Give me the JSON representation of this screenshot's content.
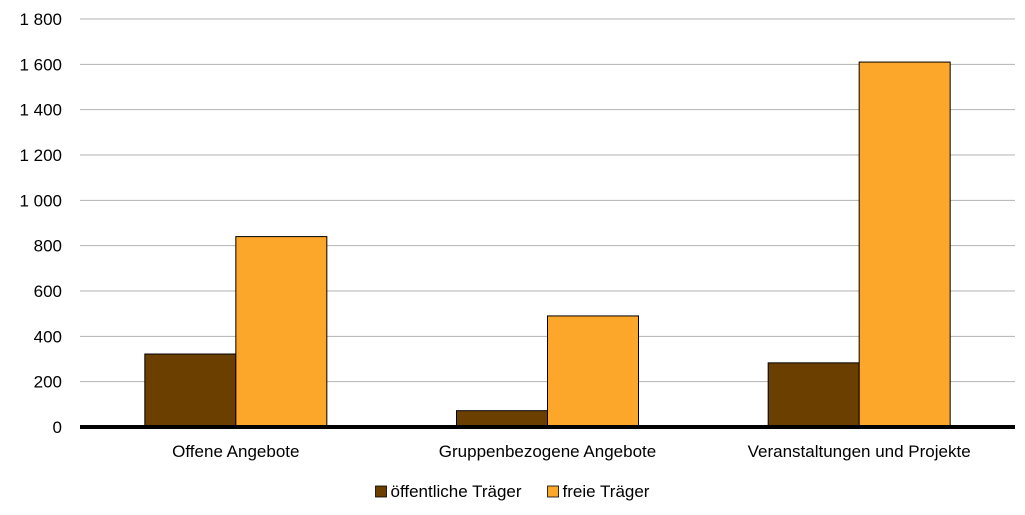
{
  "chart_data": {
    "type": "bar",
    "categories": [
      "Offene Angebote",
      "Gruppenbezogene Angebote",
      "Veranstaltungen und Projekte"
    ],
    "series": [
      {
        "name": "öffentliche Träger",
        "values": [
          322,
          72,
          283
        ],
        "color": "#6b3f00"
      },
      {
        "name": "freie Träger",
        "values": [
          840,
          490,
          1610
        ],
        "color": "#fca62a"
      }
    ],
    "ylim": [
      0,
      1800
    ],
    "yticks": [
      0,
      200,
      400,
      600,
      800,
      1000,
      1200,
      1400,
      1600,
      1800
    ],
    "ytick_labels": [
      "0",
      "200",
      "400",
      "600",
      "800",
      "1 000",
      "1 200",
      "1 400",
      "1 600",
      "1 800"
    ],
    "grid": true,
    "legend_position": "bottom",
    "title": "",
    "xlabel": "",
    "ylabel": ""
  }
}
